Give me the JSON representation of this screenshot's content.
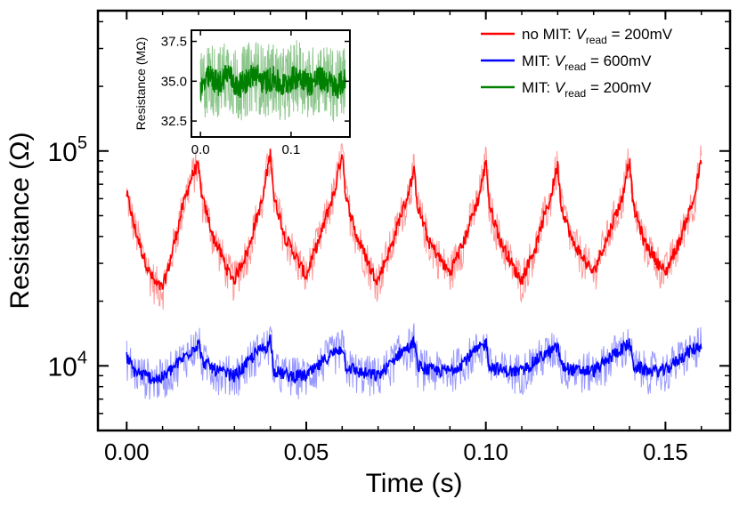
{
  "chart_data": [
    {
      "type": "line",
      "scale": {
        "x": "linear",
        "y": "log"
      },
      "xlabel": "Time (s)",
      "ylabel": "Resistance (Ω)",
      "xlim": [
        -0.008,
        0.168
      ],
      "ylim": [
        5000,
        450000
      ],
      "xticks": [
        {
          "value": 0.0,
          "label": "0.00"
        },
        {
          "value": 0.05,
          "label": "0.05"
        },
        {
          "value": 0.1,
          "label": "0.10"
        },
        {
          "value": 0.15,
          "label": "0.15"
        }
      ],
      "yticks": [
        {
          "value": 10000,
          "base": "10",
          "exp": "4"
        },
        {
          "value": 100000,
          "base": "10",
          "exp": "5"
        }
      ],
      "legend_position": "top-right",
      "grid": false,
      "series": [
        {
          "name": "no MIT: V_read = 200mV",
          "legend": {
            "prefix": "no MIT: ",
            "var": "V",
            "sub": "read",
            "suffix": " = 200mV"
          },
          "color": "#ff0000",
          "x": [
            0.0,
            0.002,
            0.004,
            0.006,
            0.008,
            0.01,
            0.012,
            0.014,
            0.016,
            0.018,
            0.0195,
            0.02,
            0.021,
            0.024,
            0.028,
            0.03,
            0.034,
            0.038,
            0.0395,
            0.04,
            0.041,
            0.044,
            0.048,
            0.05,
            0.054,
            0.058,
            0.0595,
            0.06,
            0.061,
            0.064,
            0.068,
            0.07,
            0.074,
            0.078,
            0.0795,
            0.08,
            0.081,
            0.084,
            0.088,
            0.09,
            0.094,
            0.098,
            0.0995,
            0.1,
            0.101,
            0.104,
            0.108,
            0.11,
            0.114,
            0.118,
            0.1195,
            0.12,
            0.121,
            0.124,
            0.128,
            0.13,
            0.134,
            0.138,
            0.1395,
            0.14,
            0.141,
            0.144,
            0.148,
            0.15,
            0.154,
            0.158,
            0.16
          ],
          "y": [
            63000,
            45000,
            35000,
            28000,
            24000,
            23000,
            30000,
            42000,
            58000,
            75000,
            85000,
            82000,
            60000,
            40000,
            28000,
            25000,
            35000,
            60000,
            88000,
            98000,
            60000,
            40000,
            30000,
            26000,
            40000,
            65000,
            90000,
            100000,
            60000,
            40000,
            28000,
            25000,
            37000,
            60000,
            75000,
            80000,
            55000,
            38000,
            30000,
            27000,
            38000,
            60000,
            80000,
            90000,
            55000,
            38000,
            28000,
            25000,
            36000,
            60000,
            80000,
            85000,
            55000,
            38000,
            30000,
            27000,
            40000,
            60000,
            85000,
            90000,
            55000,
            38000,
            30000,
            27000,
            38000,
            60000,
            90000
          ]
        },
        {
          "name": "MIT: V_read = 600mV",
          "legend": {
            "prefix": "MIT: ",
            "var": "V",
            "sub": "read",
            "suffix": " = 600mV"
          },
          "color": "#0000ff",
          "x": [
            0.0,
            0.002,
            0.005,
            0.008,
            0.01,
            0.013,
            0.016,
            0.0195,
            0.02,
            0.021,
            0.025,
            0.03,
            0.033,
            0.036,
            0.0395,
            0.04,
            0.041,
            0.045,
            0.05,
            0.053,
            0.056,
            0.0595,
            0.06,
            0.061,
            0.065,
            0.07,
            0.073,
            0.076,
            0.0795,
            0.08,
            0.081,
            0.085,
            0.09,
            0.093,
            0.096,
            0.0995,
            0.1,
            0.101,
            0.105,
            0.11,
            0.113,
            0.116,
            0.1195,
            0.12,
            0.121,
            0.125,
            0.13,
            0.133,
            0.136,
            0.1395,
            0.14,
            0.141,
            0.145,
            0.15,
            0.153,
            0.156,
            0.16
          ],
          "y": [
            11000,
            9500,
            9000,
            8700,
            8800,
            9800,
            11000,
            12500,
            13000,
            10500,
            9500,
            9000,
            10000,
            11500,
            12500,
            13500,
            9500,
            9000,
            9000,
            9800,
            11000,
            12000,
            12500,
            10000,
            9300,
            9000,
            10000,
            11500,
            12500,
            13000,
            10000,
            9500,
            9500,
            10200,
            11300,
            12500,
            13000,
            10000,
            9500,
            9400,
            10300,
            11200,
            12000,
            12500,
            10000,
            9500,
            9500,
            10300,
            11500,
            12500,
            13000,
            10000,
            9500,
            9500,
            10500,
            11500,
            12500
          ]
        }
      ]
    },
    {
      "type": "line",
      "role": "inset",
      "ylabel": "Resistance (MΩ)",
      "xlim": [
        -0.01,
        0.165
      ],
      "ylim": [
        31.5,
        38.2
      ],
      "xticks": [
        {
          "value": 0.0,
          "label": "0.0"
        },
        {
          "value": 0.1,
          "label": "0.1"
        }
      ],
      "yticks": [
        {
          "value": 32.5,
          "label": "32.5"
        },
        {
          "value": 35.0,
          "label": "35.0"
        },
        {
          "value": 37.5,
          "label": "37.5"
        }
      ],
      "series": [
        {
          "name": "MIT: V_read = 200mV",
          "legend": {
            "prefix": "MIT: ",
            "var": "V",
            "sub": "read",
            "suffix": " = 200mV"
          },
          "color": "#008000",
          "x": [
            0.0,
            0.01,
            0.02,
            0.03,
            0.04,
            0.05,
            0.06,
            0.07,
            0.08,
            0.09,
            0.1,
            0.11,
            0.12,
            0.13,
            0.14,
            0.15,
            0.16
          ],
          "y": [
            34.5,
            35.3,
            34.8,
            35.6,
            34.6,
            35.0,
            35.5,
            34.9,
            35.2,
            34.7,
            35.1,
            35.4,
            34.8,
            35.2,
            35.0,
            34.6,
            35.1
          ]
        }
      ]
    }
  ]
}
